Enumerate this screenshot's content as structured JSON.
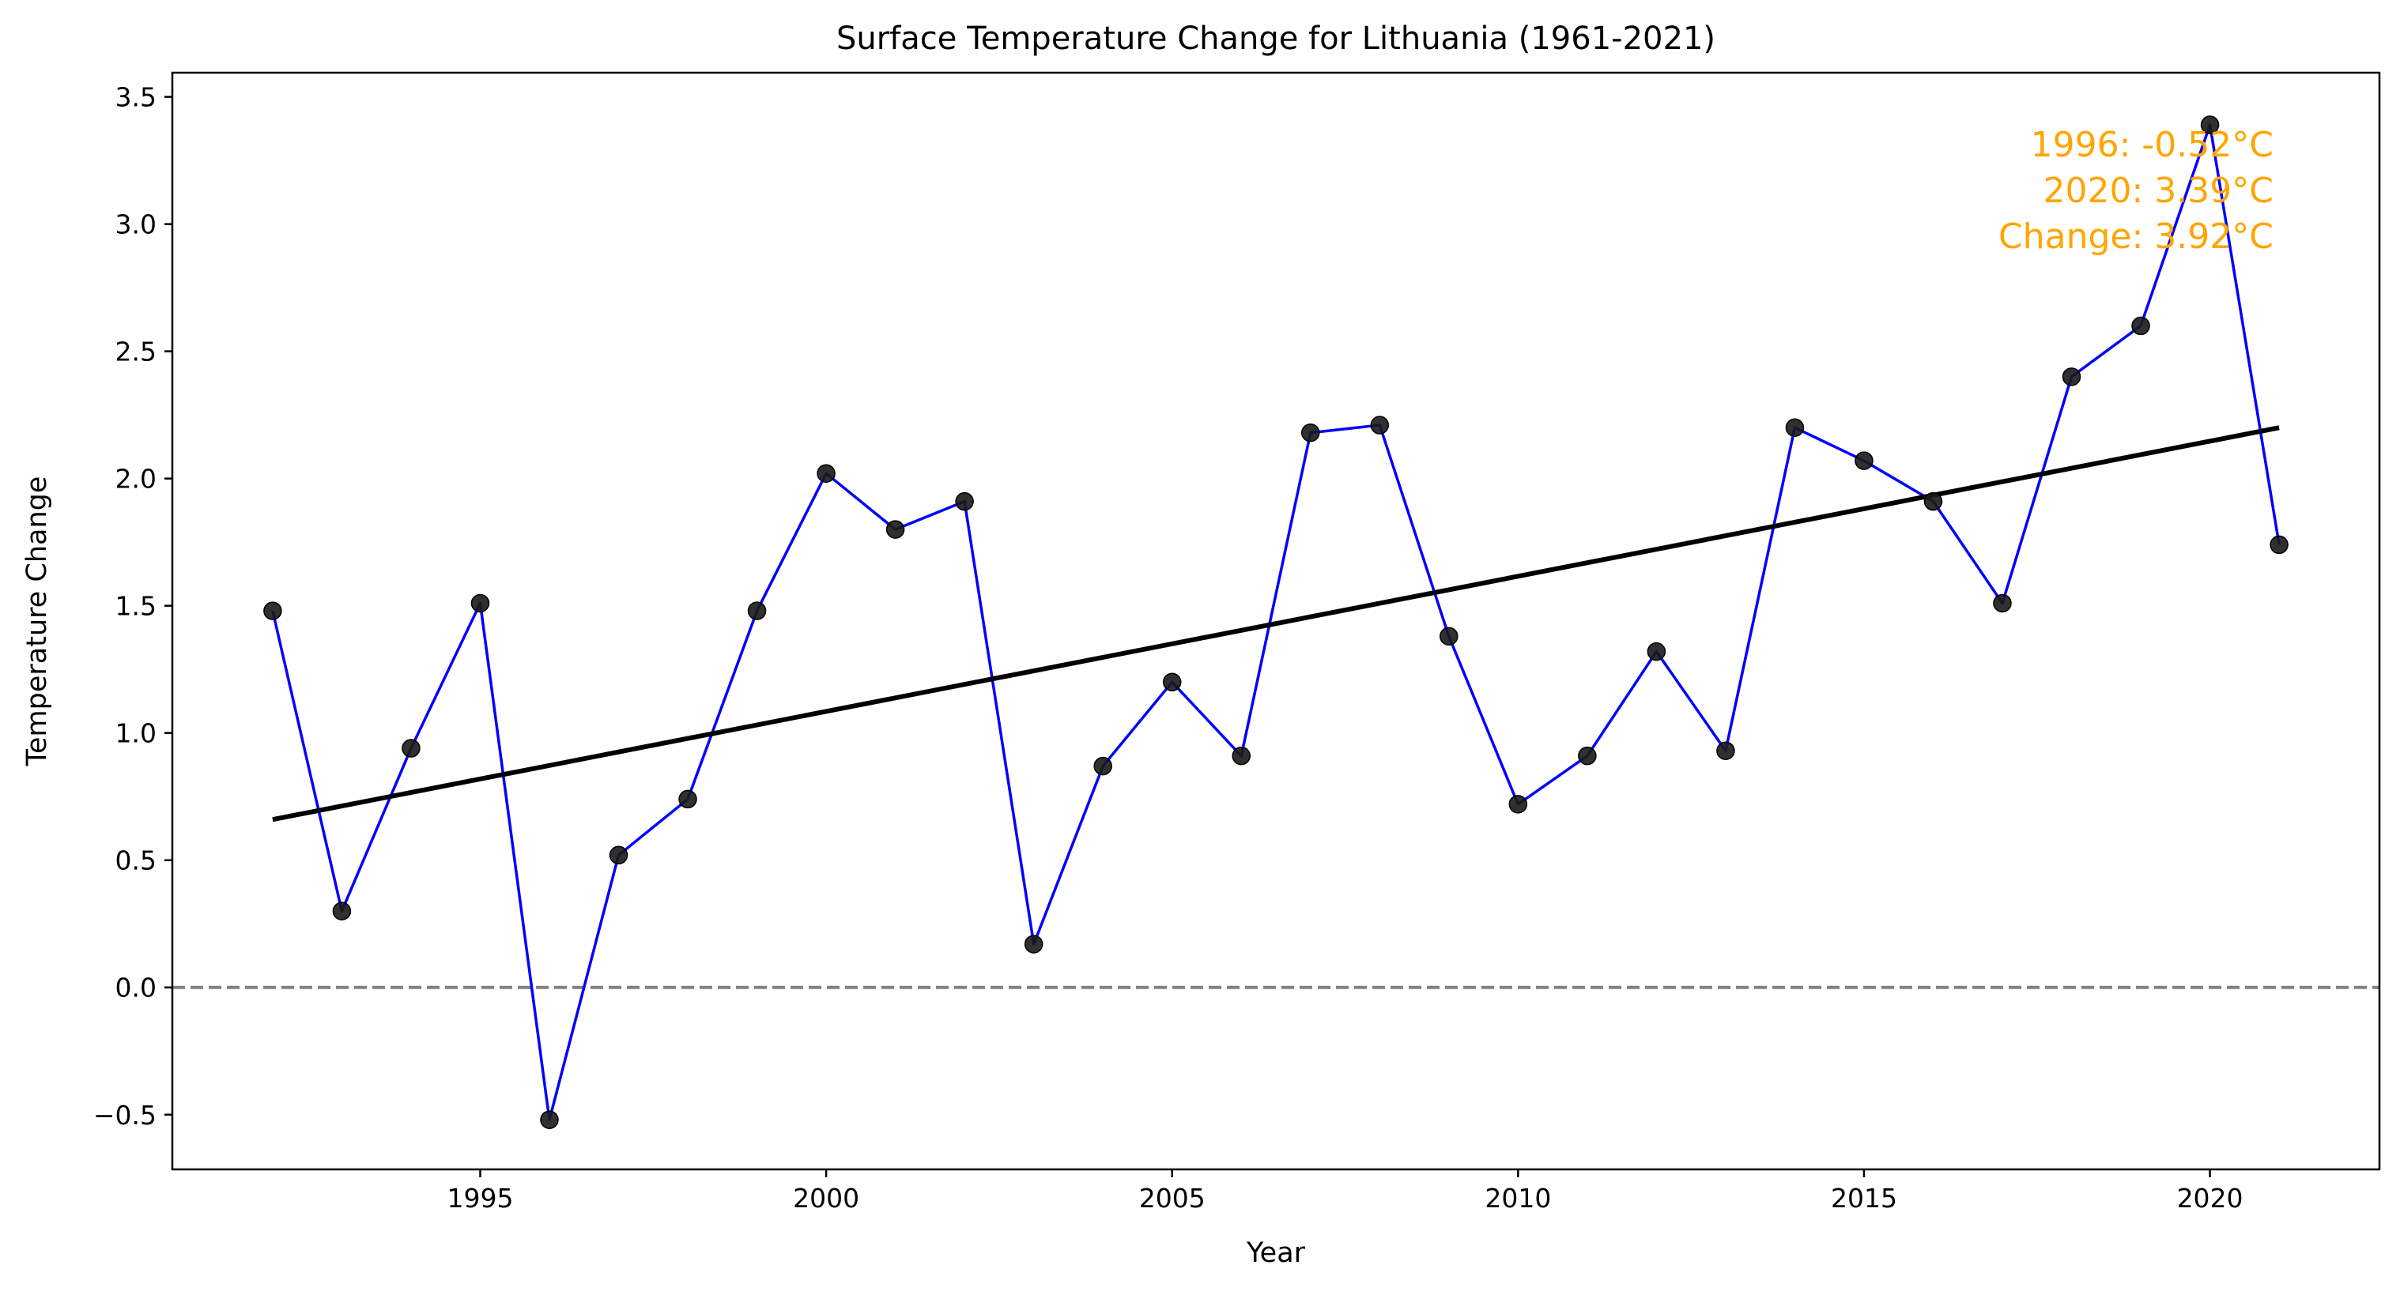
{
  "chart_data": {
    "type": "line",
    "title": "Surface Temperature Change for Lithuania (1961-2021)",
    "xlabel": "Year",
    "ylabel": "Temperature Change",
    "xlim": [
      1990.55,
      2022.45
    ],
    "ylim": [
      -0.715,
      3.595
    ],
    "xticks": [
      1995,
      2000,
      2005,
      2010,
      2015,
      2020
    ],
    "xtick_labels": [
      "1995",
      "2000",
      "2005",
      "2010",
      "2015",
      "2020"
    ],
    "yticks": [
      -0.5,
      0.0,
      0.5,
      1.0,
      1.5,
      2.0,
      2.5,
      3.0,
      3.5
    ],
    "ytick_labels": [
      "−0.5",
      "0.0",
      "0.5",
      "1.0",
      "1.5",
      "2.0",
      "2.5",
      "3.0",
      "3.5"
    ],
    "grid": false,
    "reference_line": {
      "y": 0.0,
      "style": "dashed",
      "color": "#808080"
    },
    "series": [
      {
        "type": "line",
        "color": "#0000ff",
        "marker_color": "#1a1a1a",
        "x": [
          1992,
          1993,
          1994,
          1995,
          1996,
          1997,
          1998,
          1999,
          2000,
          2001,
          2002,
          2003,
          2004,
          2005,
          2006,
          2007,
          2008,
          2009,
          2010,
          2011,
          2012,
          2013,
          2014,
          2015,
          2016,
          2017,
          2018,
          2019,
          2020,
          2021
        ],
        "y": [
          1.48,
          0.3,
          0.94,
          1.51,
          -0.52,
          0.52,
          0.74,
          1.48,
          2.02,
          1.8,
          1.91,
          0.17,
          0.87,
          1.2,
          0.91,
          2.18,
          2.21,
          1.38,
          0.72,
          0.91,
          1.32,
          0.93,
          2.2,
          2.07,
          1.91,
          1.51,
          2.4,
          2.6,
          3.39,
          1.74
        ]
      }
    ],
    "trend_line": {
      "color": "#000000",
      "x": [
        1992,
        2021
      ],
      "y": [
        0.66,
        2.2
      ]
    },
    "annotation": {
      "lines": [
        "1996: -0.52°C",
        "2020: 3.39°C",
        "Change: 3.92°C"
      ],
      "color": "#ffa500",
      "placement": "top-right"
    }
  }
}
